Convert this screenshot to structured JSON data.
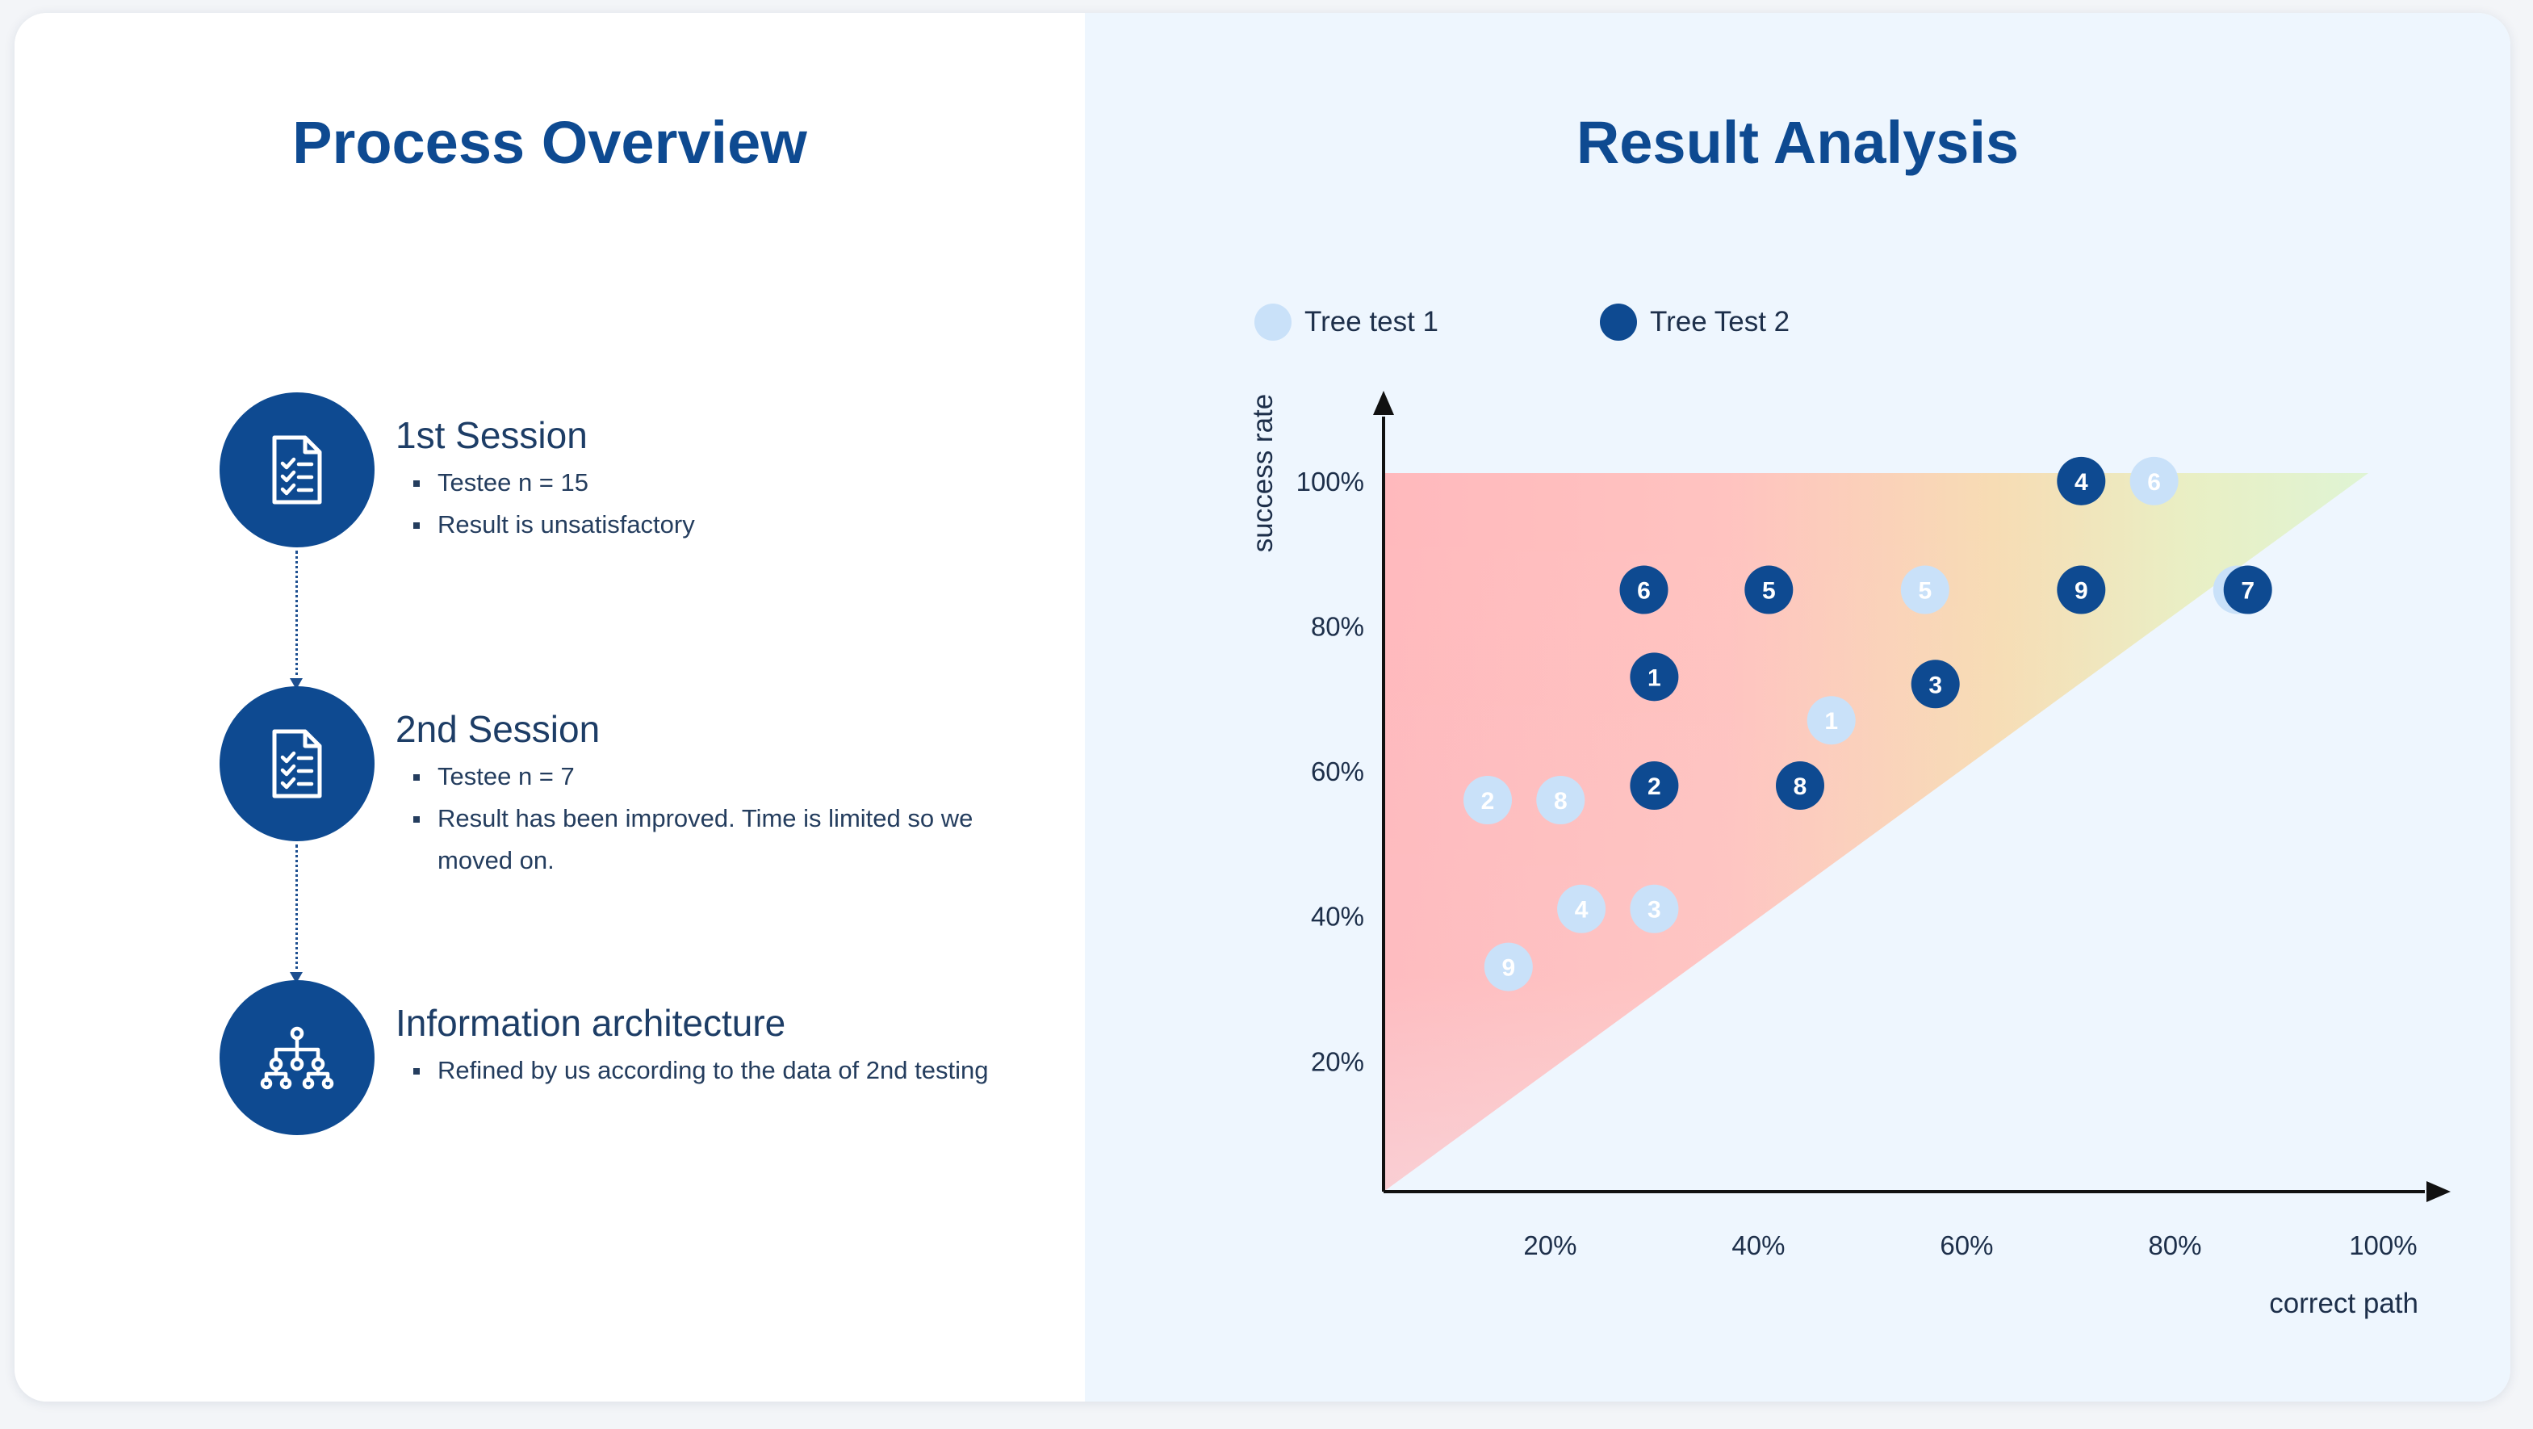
{
  "process": {
    "title": "Process Overview",
    "steps": [
      {
        "title": "1st Session",
        "icon": "clipboard-checklist-icon",
        "bullets": [
          "Testee n = 15",
          "Result is unsatisfactory"
        ]
      },
      {
        "title": "2nd Session",
        "icon": "clipboard-checklist-icon",
        "bullets": [
          "Testee n = 7",
          "Result has been improved. Time is limited so we moved on."
        ]
      },
      {
        "title": "Information architecture",
        "icon": "sitemap-hierarchy-icon",
        "bullets": [
          "Refined by us according to the data of 2nd testing"
        ]
      }
    ]
  },
  "analysis": {
    "title": "Result Analysis"
  },
  "chart_data": {
    "type": "scatter",
    "xlabel": "correct path",
    "ylabel": "success rate",
    "x_ticks": [
      "20%",
      "40%",
      "60%",
      "80%",
      "100%"
    ],
    "y_ticks": [
      "20%",
      "40%",
      "60%",
      "80%",
      "100%"
    ],
    "xlim": [
      4,
      104
    ],
    "ylim": [
      2,
      110
    ],
    "grid": false,
    "legend_position": "top-left",
    "background": "gradient-triangle red-to-green",
    "series": [
      {
        "name": "Tree test 1",
        "color": "#c9e1f9",
        "points": [
          {
            "label": "1",
            "x": 47,
            "y": 67
          },
          {
            "label": "2",
            "x": 14,
            "y": 56
          },
          {
            "label": "3",
            "x": 30,
            "y": 41
          },
          {
            "label": "4",
            "x": 23,
            "y": 41
          },
          {
            "label": "5",
            "x": 56,
            "y": 85
          },
          {
            "label": "6",
            "x": 78,
            "y": 100
          },
          {
            "label": "7",
            "x": 86,
            "y": 85
          },
          {
            "label": "8",
            "x": 21,
            "y": 56
          },
          {
            "label": "9",
            "x": 16,
            "y": 33
          }
        ]
      },
      {
        "name": "Tree Test 2",
        "color": "#0e4a91",
        "points": [
          {
            "label": "1",
            "x": 30,
            "y": 73
          },
          {
            "label": "2",
            "x": 30,
            "y": 58
          },
          {
            "label": "3",
            "x": 57,
            "y": 72
          },
          {
            "label": "4",
            "x": 71,
            "y": 100
          },
          {
            "label": "5",
            "x": 41,
            "y": 85
          },
          {
            "label": "6",
            "x": 29,
            "y": 85
          },
          {
            "label": "7",
            "x": 87,
            "y": 85
          },
          {
            "label": "8",
            "x": 44,
            "y": 58
          },
          {
            "label": "9",
            "x": 71,
            "y": 85
          }
        ]
      }
    ]
  }
}
